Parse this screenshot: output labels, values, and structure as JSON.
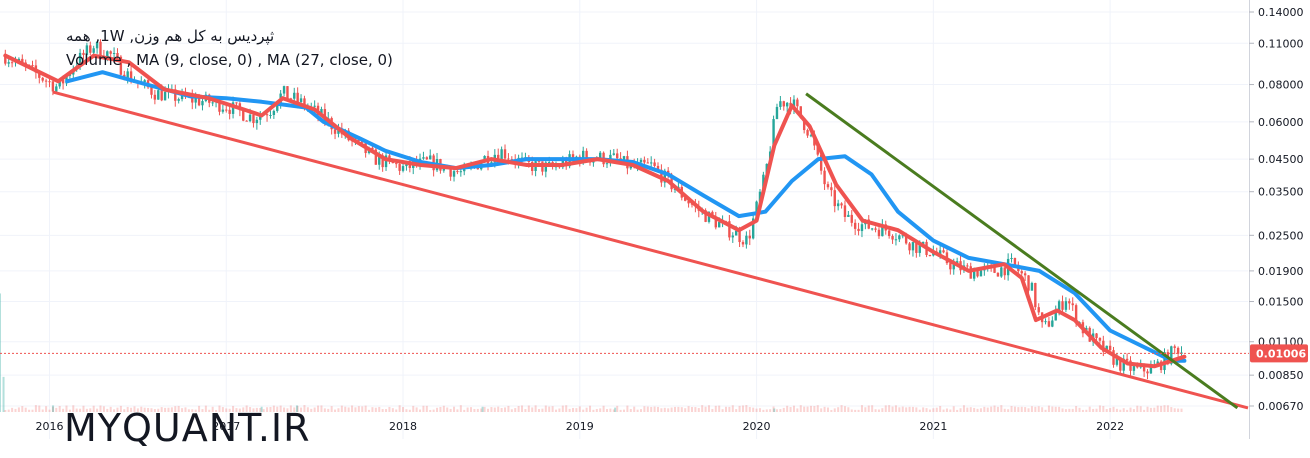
{
  "legend": {
    "line1": "ثپردیس به کل هم وزن, 1W, همه",
    "line2": "Volume , MA (9, close, 0) , MA (27, close, 0)"
  },
  "watermark": "MYQUANT.IR",
  "chart_data": {
    "type": "candlestick",
    "y_scale": "log",
    "ylim": [
      0.0064,
      0.145
    ],
    "y_ticks": [
      "0.14000",
      "0.11000",
      "0.08000",
      "0.06000",
      "0.04500",
      "0.03500",
      "0.02500",
      "0.01900",
      "0.01500",
      "0.01100",
      "0.00850",
      "0.00670"
    ],
    "y_tick_values": [
      0.14,
      0.11,
      0.08,
      0.06,
      0.045,
      0.035,
      0.025,
      0.019,
      0.015,
      0.011,
      0.0085,
      0.0067
    ],
    "x_range": [
      2015.72,
      2022.78
    ],
    "x_ticks": [
      "2016",
      "2017",
      "2018",
      "2019",
      "2020",
      "2021",
      "2022"
    ],
    "x_tick_values": [
      2016,
      2017,
      2018,
      2019,
      2020,
      2021,
      2022
    ],
    "last_price": "0.01006",
    "last_price_value": 0.01006,
    "colors": {
      "up": "#26a69a",
      "down": "#ef5350",
      "ma_fast": "#ef5350",
      "ma_slow": "#2196f3",
      "trend_lower": "#ef5350",
      "trend_upper": "#4a7c1f",
      "price_line": "#ef5350",
      "grid": "#f0f3fa"
    },
    "price_anchors": [
      [
        2015.75,
        0.1
      ],
      [
        2015.95,
        0.085
      ],
      [
        2016.05,
        0.078
      ],
      [
        2016.15,
        0.095
      ],
      [
        2016.25,
        0.108
      ],
      [
        2016.35,
        0.1
      ],
      [
        2016.45,
        0.085
      ],
      [
        2016.6,
        0.075
      ],
      [
        2016.75,
        0.072
      ],
      [
        2016.9,
        0.07
      ],
      [
        2017.0,
        0.068
      ],
      [
        2017.15,
        0.062
      ],
      [
        2017.25,
        0.066
      ],
      [
        2017.32,
        0.075
      ],
      [
        2017.45,
        0.068
      ],
      [
        2017.55,
        0.062
      ],
      [
        2017.7,
        0.052
      ],
      [
        2017.85,
        0.045
      ],
      [
        2018.0,
        0.042
      ],
      [
        2018.15,
        0.044
      ],
      [
        2018.35,
        0.04
      ],
      [
        2018.45,
        0.045
      ],
      [
        2018.55,
        0.048
      ],
      [
        2018.7,
        0.043
      ],
      [
        2018.85,
        0.042
      ],
      [
        2019.0,
        0.046
      ],
      [
        2019.2,
        0.045
      ],
      [
        2019.3,
        0.042
      ],
      [
        2019.4,
        0.043
      ],
      [
        2019.5,
        0.038
      ],
      [
        2019.65,
        0.031
      ],
      [
        2019.8,
        0.027
      ],
      [
        2019.95,
        0.024
      ],
      [
        2020.05,
        0.04
      ],
      [
        2020.12,
        0.07
      ],
      [
        2020.2,
        0.07
      ],
      [
        2020.3,
        0.055
      ],
      [
        2020.4,
        0.035
      ],
      [
        2020.5,
        0.029
      ],
      [
        2020.6,
        0.027
      ],
      [
        2020.75,
        0.026
      ],
      [
        2020.9,
        0.023
      ],
      [
        2021.0,
        0.022
      ],
      [
        2021.1,
        0.02
      ],
      [
        2021.2,
        0.019
      ],
      [
        2021.35,
        0.019
      ],
      [
        2021.45,
        0.02
      ],
      [
        2021.55,
        0.017
      ],
      [
        2021.62,
        0.012
      ],
      [
        2021.7,
        0.014
      ],
      [
        2021.75,
        0.0155
      ],
      [
        2021.85,
        0.012
      ],
      [
        2021.95,
        0.0105
      ],
      [
        2022.05,
        0.0093
      ],
      [
        2022.15,
        0.0088
      ],
      [
        2022.25,
        0.009
      ],
      [
        2022.3,
        0.0095
      ],
      [
        2022.38,
        0.0105
      ],
      [
        2022.42,
        0.01006
      ]
    ],
    "ma_fast_points": [
      [
        2015.75,
        0.1
      ],
      [
        2016.05,
        0.082
      ],
      [
        2016.25,
        0.1
      ],
      [
        2016.45,
        0.095
      ],
      [
        2016.65,
        0.077
      ],
      [
        2016.9,
        0.072
      ],
      [
        2017.1,
        0.066
      ],
      [
        2017.2,
        0.063
      ],
      [
        2017.32,
        0.072
      ],
      [
        2017.5,
        0.066
      ],
      [
        2017.7,
        0.053
      ],
      [
        2017.9,
        0.045
      ],
      [
        2018.1,
        0.043
      ],
      [
        2018.3,
        0.042
      ],
      [
        2018.5,
        0.045
      ],
      [
        2018.7,
        0.043
      ],
      [
        2018.9,
        0.043
      ],
      [
        2019.1,
        0.045
      ],
      [
        2019.3,
        0.043
      ],
      [
        2019.5,
        0.038
      ],
      [
        2019.7,
        0.03
      ],
      [
        2019.9,
        0.026
      ],
      [
        2020.0,
        0.028
      ],
      [
        2020.1,
        0.05
      ],
      [
        2020.2,
        0.068
      ],
      [
        2020.3,
        0.058
      ],
      [
        2020.45,
        0.037
      ],
      [
        2020.6,
        0.028
      ],
      [
        2020.8,
        0.026
      ],
      [
        2021.0,
        0.022
      ],
      [
        2021.2,
        0.019
      ],
      [
        2021.4,
        0.02
      ],
      [
        2021.5,
        0.018
      ],
      [
        2021.58,
        0.013
      ],
      [
        2021.7,
        0.014
      ],
      [
        2021.8,
        0.013
      ],
      [
        2021.95,
        0.0105
      ],
      [
        2022.1,
        0.0093
      ],
      [
        2022.25,
        0.0091
      ],
      [
        2022.42,
        0.0098
      ]
    ],
    "ma_slow_points": [
      [
        2016.1,
        0.082
      ],
      [
        2016.3,
        0.088
      ],
      [
        2016.55,
        0.08
      ],
      [
        2016.8,
        0.073
      ],
      [
        2017.0,
        0.072
      ],
      [
        2017.2,
        0.07
      ],
      [
        2017.45,
        0.067
      ],
      [
        2017.55,
        0.06
      ],
      [
        2017.75,
        0.053
      ],
      [
        2017.9,
        0.048
      ],
      [
        2018.1,
        0.044
      ],
      [
        2018.3,
        0.042
      ],
      [
        2018.5,
        0.043
      ],
      [
        2018.7,
        0.045
      ],
      [
        2018.9,
        0.045
      ],
      [
        2019.1,
        0.045
      ],
      [
        2019.3,
        0.044
      ],
      [
        2019.5,
        0.04
      ],
      [
        2019.7,
        0.034
      ],
      [
        2019.9,
        0.029
      ],
      [
        2020.05,
        0.03
      ],
      [
        2020.2,
        0.038
      ],
      [
        2020.35,
        0.045
      ],
      [
        2020.5,
        0.046
      ],
      [
        2020.65,
        0.04
      ],
      [
        2020.8,
        0.03
      ],
      [
        2021.0,
        0.024
      ],
      [
        2021.2,
        0.021
      ],
      [
        2021.4,
        0.02
      ],
      [
        2021.6,
        0.019
      ],
      [
        2021.8,
        0.016
      ],
      [
        2022.0,
        0.012
      ],
      [
        2022.2,
        0.0105
      ],
      [
        2022.35,
        0.0095
      ],
      [
        2022.42,
        0.0095
      ]
    ],
    "trendline_lower": [
      [
        2016.02,
        0.0755
      ],
      [
        2022.78,
        0.0066
      ]
    ],
    "trendline_upper": [
      [
        2020.28,
        0.0745
      ],
      [
        2022.72,
        0.0066
      ]
    ],
    "volume_spikes": [
      [
        2015.72,
        0.27
      ],
      [
        2015.74,
        0.08
      ],
      [
        2016.02,
        0.015
      ],
      [
        2017.2,
        0.012
      ],
      [
        2017.4,
        0.015
      ],
      [
        2018.45,
        0.012
      ],
      [
        2019.2,
        0.01
      ],
      [
        2020.1,
        0.008
      ]
    ]
  }
}
